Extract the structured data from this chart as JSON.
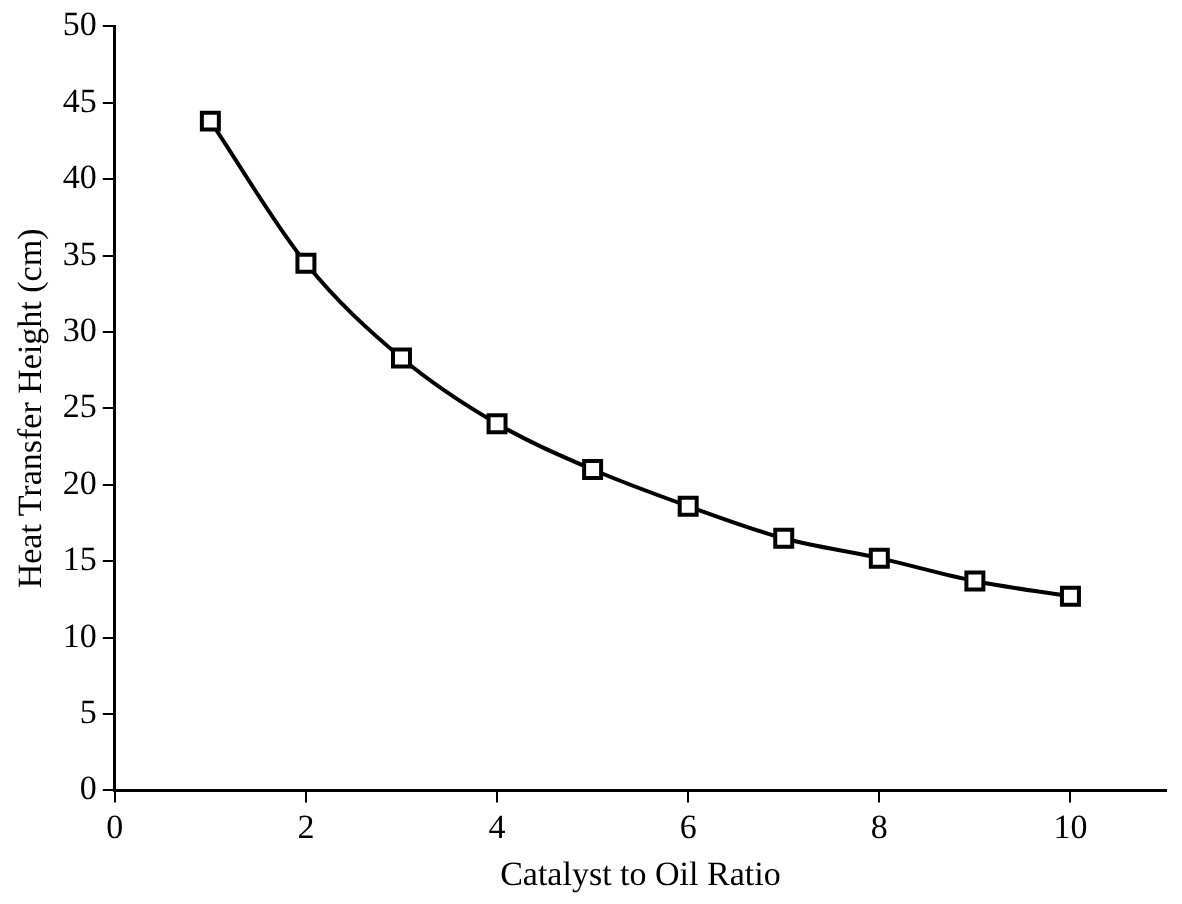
{
  "chart_data": {
    "type": "line",
    "xlabel": "Catalyst to Oil Ratio",
    "ylabel": "Heat Transfer Height (cm)",
    "x": [
      1,
      2,
      3,
      4,
      5,
      6,
      7,
      8,
      9,
      10
    ],
    "series": [
      {
        "color": "#000000",
        "values": [
          43.8,
          34.5,
          28.3,
          24.0,
          21.0,
          18.6,
          16.5,
          15.2,
          13.7,
          12.7
        ]
      }
    ],
    "xlim": [
      0,
      11
    ],
    "xticks": [
      0,
      2,
      4,
      6,
      8,
      10
    ],
    "ylim": [
      0,
      50
    ],
    "yticks": [
      0,
      5,
      10,
      15,
      20,
      25,
      30,
      35,
      40,
      45,
      50
    ],
    "grid": false,
    "legend": false,
    "marker": "square",
    "line_style": "solid"
  }
}
